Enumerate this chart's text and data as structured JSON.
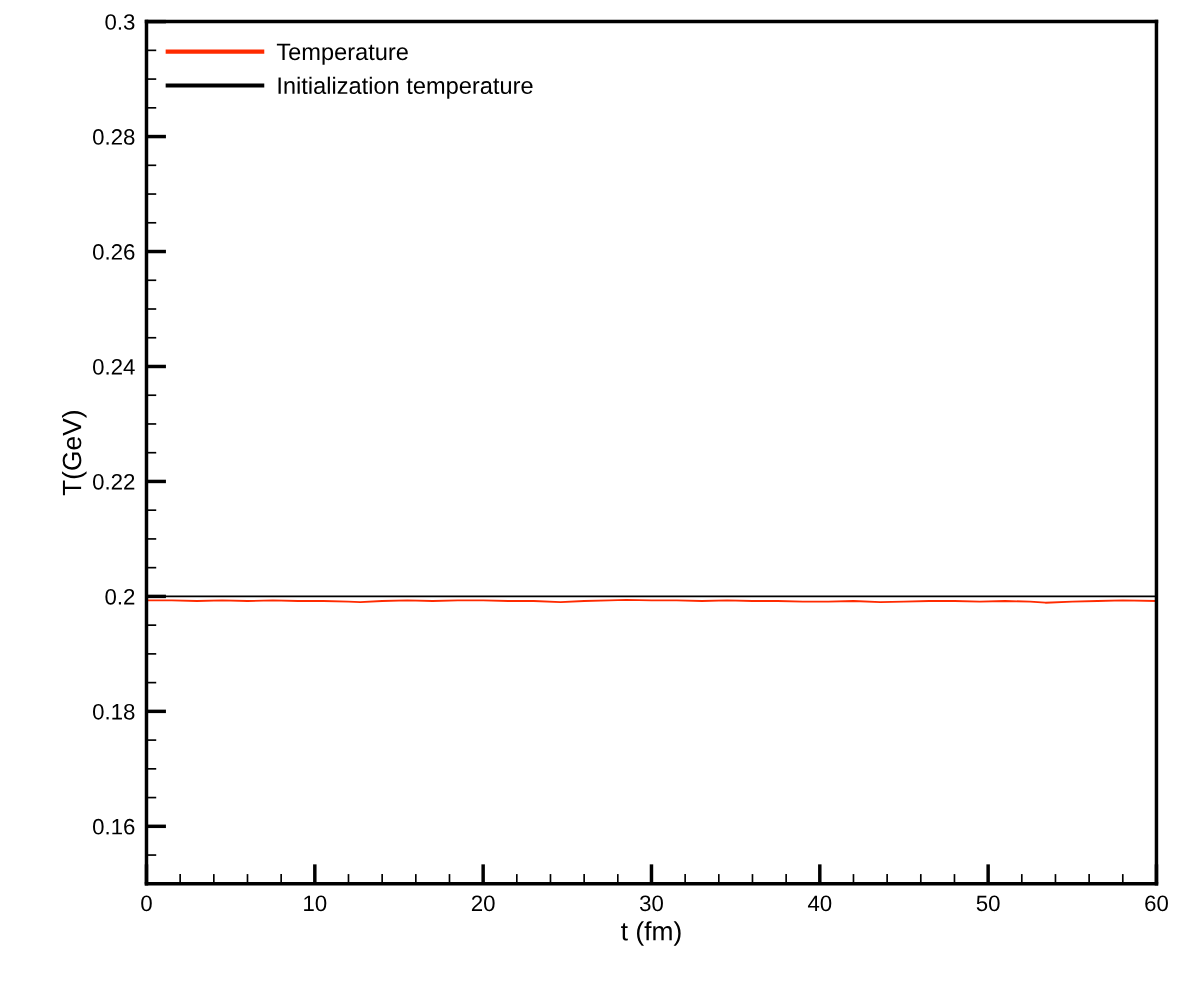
{
  "chart_data": {
    "type": "line",
    "xlabel": "t (fm)",
    "ylabel": "T(GeV)",
    "xlim": [
      0,
      60
    ],
    "ylim": [
      0.15,
      0.3
    ],
    "xticks": [
      0,
      {
        "value": 2,
        "label": null
      },
      {
        "value": 4,
        "label": null
      },
      {
        "value": 6,
        "label": null
      },
      {
        "value": 8,
        "label": null
      },
      10,
      {
        "value": 12,
        "label": null
      },
      {
        "value": 14,
        "label": null
      },
      {
        "value": 16,
        "label": null
      },
      {
        "value": 18,
        "label": null
      },
      20,
      {
        "value": 22,
        "label": null
      },
      {
        "value": 24,
        "label": null
      },
      {
        "value": 26,
        "label": null
      },
      {
        "value": 28,
        "label": null
      },
      30,
      {
        "value": 32,
        "label": null
      },
      {
        "value": 34,
        "label": null
      },
      {
        "value": 36,
        "label": null
      },
      {
        "value": 38,
        "label": null
      },
      40,
      {
        "value": 42,
        "label": null
      },
      {
        "value": 44,
        "label": null
      },
      {
        "value": 46,
        "label": null
      },
      {
        "value": 48,
        "label": null
      },
      50,
      {
        "value": 52,
        "label": null
      },
      {
        "value": 54,
        "label": null
      },
      {
        "value": 56,
        "label": null
      },
      {
        "value": 58,
        "label": null
      },
      60
    ],
    "yticks": [
      {
        "value": 0.15,
        "label": null
      },
      {
        "value": 0.155,
        "label": null
      },
      0.16,
      {
        "value": 0.165,
        "label": null
      },
      {
        "value": 0.17,
        "label": null
      },
      {
        "value": 0.175,
        "label": null
      },
      0.18,
      {
        "value": 0.185,
        "label": null
      },
      {
        "value": 0.19,
        "label": null
      },
      {
        "value": 0.195,
        "label": null
      },
      {
        "value": 0.2,
        "label": "0.2"
      },
      {
        "value": 0.205,
        "label": null
      },
      {
        "value": 0.21,
        "label": null
      },
      {
        "value": 0.215,
        "label": null
      },
      0.22,
      {
        "value": 0.225,
        "label": null
      },
      {
        "value": 0.23,
        "label": null
      },
      {
        "value": 0.235,
        "label": null
      },
      0.24,
      {
        "value": 0.245,
        "label": null
      },
      {
        "value": 0.25,
        "label": null
      },
      {
        "value": 0.255,
        "label": null
      },
      0.26,
      {
        "value": 0.265,
        "label": null
      },
      {
        "value": 0.27,
        "label": null
      },
      {
        "value": 0.275,
        "label": null
      },
      0.28,
      {
        "value": 0.285,
        "label": null
      },
      {
        "value": 0.29,
        "label": null
      },
      {
        "value": 0.295,
        "label": null
      },
      {
        "value": 0.3,
        "label": "0.3"
      }
    ],
    "grid": false,
    "legend": "top left",
    "marker": "none",
    "line_style": "solid",
    "series": [
      {
        "name": "Temperature",
        "color": "#ff2a00",
        "x": [
          0,
          1.5,
          3,
          4.5,
          6,
          7.5,
          9,
          10.5,
          12,
          12.7,
          14,
          15.5,
          17,
          18.5,
          20,
          21.5,
          23,
          24.6,
          26,
          27.5,
          28.5,
          30,
          31.5,
          33,
          34.5,
          36,
          37.5,
          39,
          40.5,
          42,
          43.6,
          45,
          46.5,
          48,
          49.5,
          51,
          52.5,
          53.4,
          55,
          56.5,
          58,
          60
        ],
        "values": [
          0.1993,
          0.1993,
          0.1992,
          0.1993,
          0.1992,
          0.1993,
          0.1992,
          0.1992,
          0.1991,
          0.199,
          0.1992,
          0.1993,
          0.1992,
          0.1993,
          0.1993,
          0.1992,
          0.1992,
          0.199,
          0.1992,
          0.1993,
          0.1994,
          0.1993,
          0.1993,
          0.1992,
          0.1993,
          0.1992,
          0.1992,
          0.1991,
          0.1991,
          0.1992,
          0.199,
          0.1991,
          0.1992,
          0.1992,
          0.1991,
          0.1992,
          0.1991,
          0.1989,
          0.1991,
          0.1992,
          0.1993,
          0.1992
        ]
      },
      {
        "name": "Initialization temperature",
        "color": "#000000",
        "x": [
          0,
          60
        ],
        "values": [
          0.2,
          0.2
        ]
      }
    ]
  }
}
